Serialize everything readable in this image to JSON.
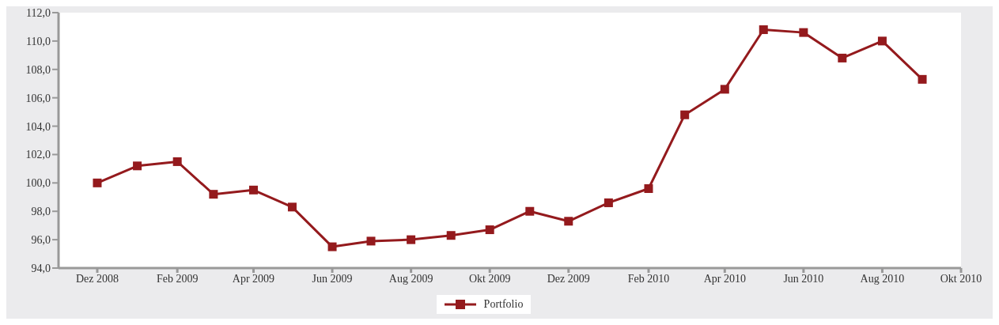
{
  "chart_data": {
    "type": "line",
    "x": [
      "2008-12",
      "2009-01",
      "2009-02",
      "2009-03",
      "2009-04",
      "2009-05",
      "2009-06",
      "2009-07",
      "2009-08",
      "2009-09",
      "2009-10",
      "2009-11",
      "2009-12",
      "2010-01",
      "2010-02",
      "2010-03",
      "2010-04",
      "2010-05",
      "2010-06",
      "2010-07",
      "2010-08",
      "2010-09"
    ],
    "series": [
      {
        "name": "Portfolio",
        "color": "#941a1d",
        "values": [
          100.0,
          101.2,
          101.5,
          99.2,
          99.5,
          98.3,
          95.5,
          95.9,
          96.0,
          96.3,
          96.7,
          98.0,
          97.3,
          98.6,
          99.6,
          104.8,
          106.6,
          110.8,
          110.6,
          108.8,
          110.0,
          107.3
        ]
      }
    ],
    "xlim": [
      "2008-11",
      "2010-10"
    ],
    "xticks": [
      {
        "value": "2008-12",
        "label": "Dez 2008"
      },
      {
        "value": "2009-02",
        "label": "Feb 2009"
      },
      {
        "value": "2009-04",
        "label": "Apr 2009"
      },
      {
        "value": "2009-06",
        "label": "Jun 2009"
      },
      {
        "value": "2009-08",
        "label": "Aug 2009"
      },
      {
        "value": "2009-10",
        "label": "Okt 2009"
      },
      {
        "value": "2009-12",
        "label": "Dez 2009"
      },
      {
        "value": "2010-02",
        "label": "Feb 2010"
      },
      {
        "value": "2010-04",
        "label": "Apr 2010"
      },
      {
        "value": "2010-06",
        "label": "Jun 2010"
      },
      {
        "value": "2010-08",
        "label": "Aug 2010"
      },
      {
        "value": "2010-10",
        "label": "Okt 2010"
      }
    ],
    "ylim": [
      94,
      112
    ],
    "yticks": [
      {
        "value": 94,
        "label": "94,0"
      },
      {
        "value": 96,
        "label": "96,0"
      },
      {
        "value": 98,
        "label": "98,0"
      },
      {
        "value": 100,
        "label": "100,0"
      },
      {
        "value": 102,
        "label": "102,0"
      },
      {
        "value": 104,
        "label": "104,0"
      },
      {
        "value": 106,
        "label": "106,0"
      },
      {
        "value": 108,
        "label": "108,0"
      },
      {
        "value": 110,
        "label": "110,0"
      },
      {
        "value": 112,
        "label": "112,0"
      }
    ],
    "grid": false,
    "legend": "bottom",
    "marker": "square",
    "line_style": "solid"
  }
}
